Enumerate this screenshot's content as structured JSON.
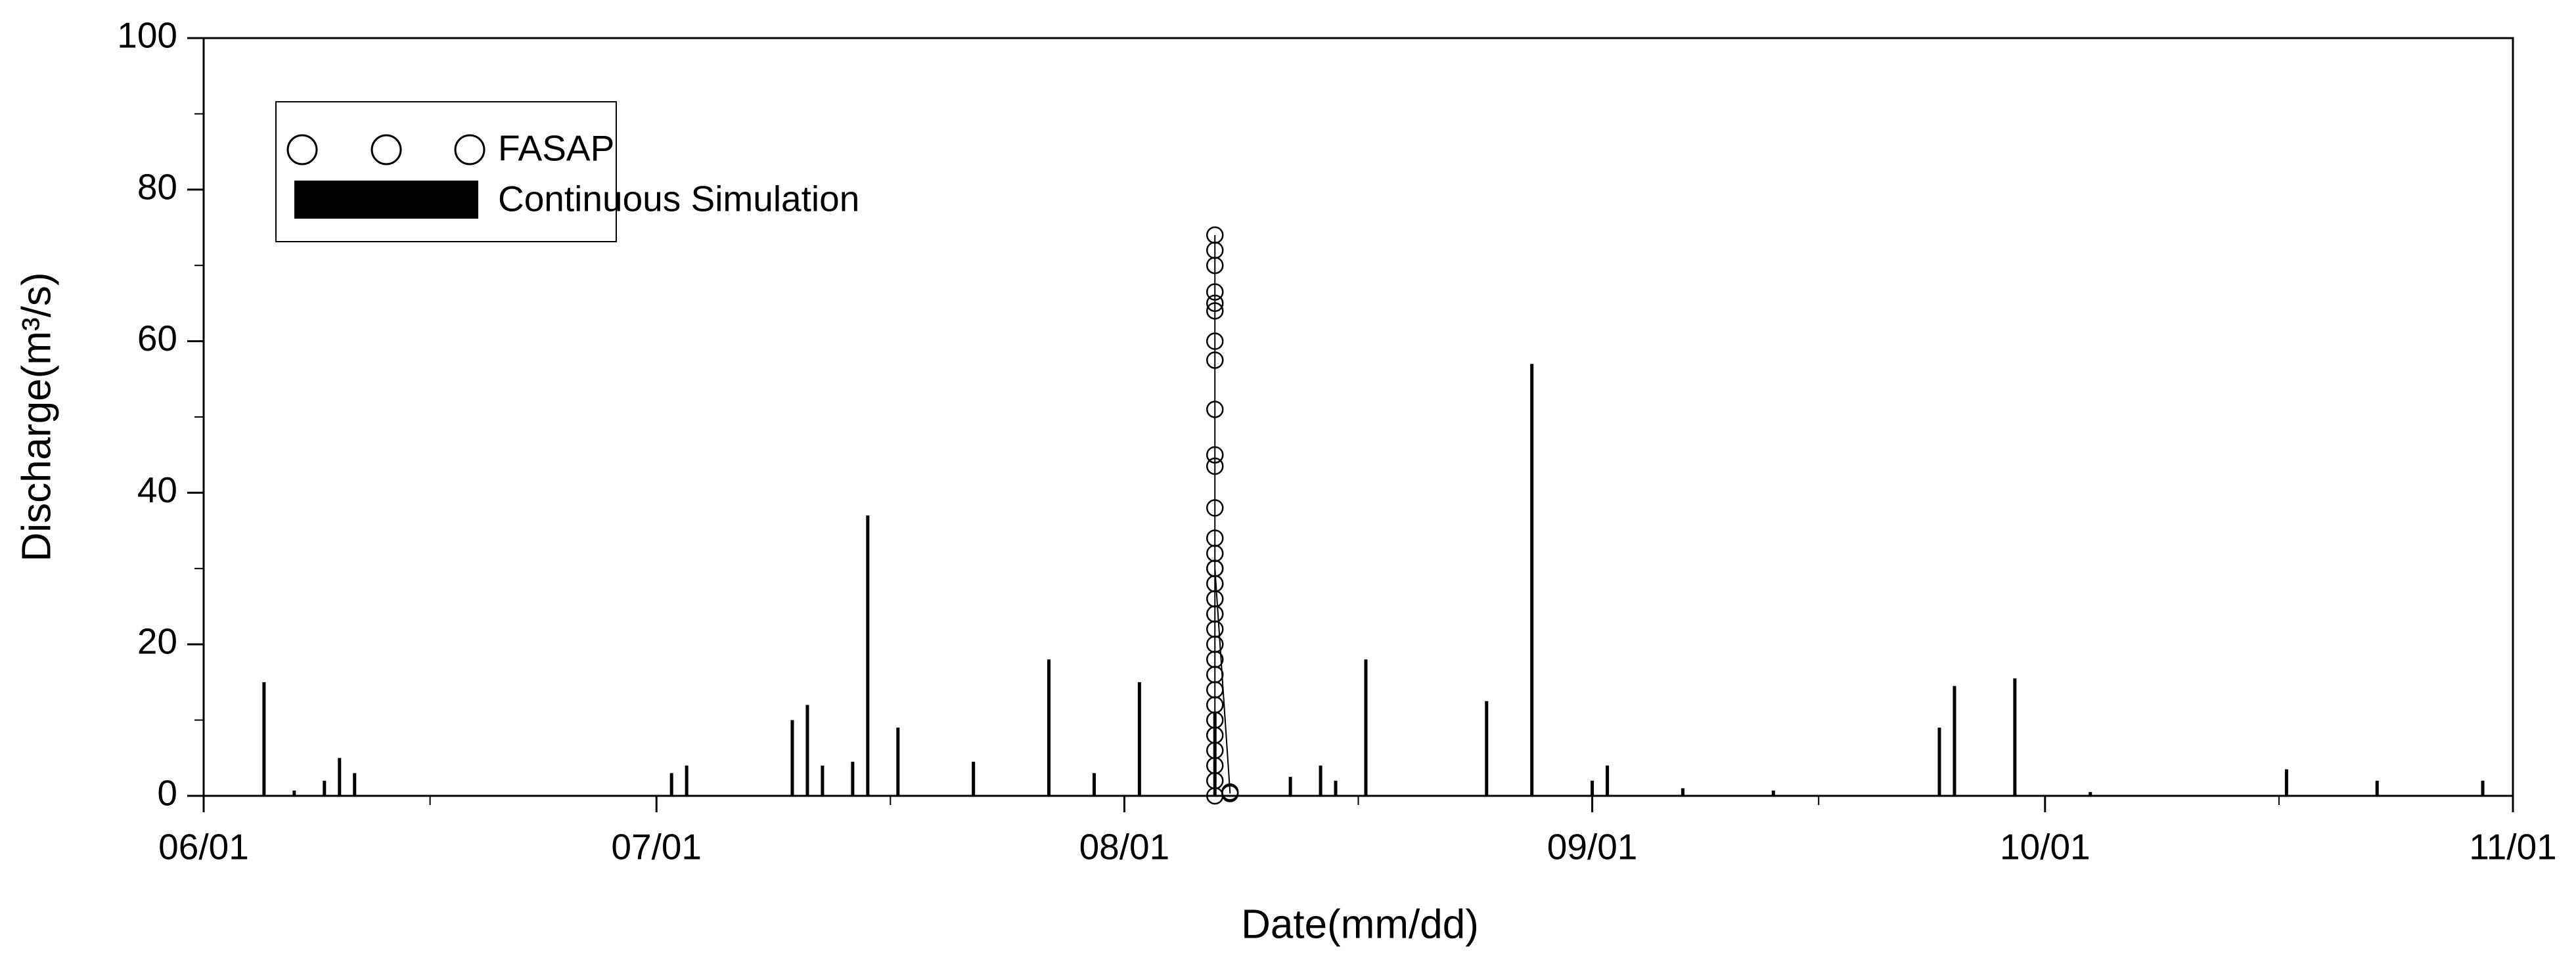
{
  "chart_data": {
    "type": "bar",
    "xlabel": "Date(mm/dd)",
    "ylabel": "Discharge(m³/s)",
    "xlim": [
      "06/01",
      "11/01"
    ],
    "xticks": [
      "06/01",
      "07/01",
      "08/01",
      "09/01",
      "10/01",
      "11/01"
    ],
    "ylim": [
      0,
      100
    ],
    "yticks": [
      0,
      20,
      40,
      60,
      80,
      100
    ],
    "legend": "upper left",
    "series": [
      {
        "name": "FASAP",
        "type": "scatter",
        "color": "#000000",
        "x": [
          "08/07",
          "08/07",
          "08/07",
          "08/07",
          "08/07",
          "08/07",
          "08/07",
          "08/07",
          "08/07",
          "08/07",
          "08/07",
          "08/07",
          "08/07",
          "08/07",
          "08/07",
          "08/07",
          "08/07",
          "08/07",
          "08/07",
          "08/07",
          "08/07",
          "08/07",
          "08/07",
          "08/07",
          "08/07",
          "08/07",
          "08/07",
          "08/07",
          "08/07",
          "08/07",
          "08/07",
          "08/08",
          "08/08"
        ],
        "values": [
          0,
          2,
          4,
          6,
          8,
          10,
          12,
          14,
          16,
          18,
          20,
          22,
          24,
          26,
          28,
          30,
          32,
          34,
          38,
          43.5,
          45,
          51,
          57.5,
          64,
          65,
          66.5,
          70,
          72,
          74,
          60,
          30,
          0.5,
          0.3
        ]
      },
      {
        "name": "Continuous Simulation",
        "type": "bar",
        "color": "#000000",
        "x": [
          "06/05",
          "06/07",
          "06/09",
          "06/10",
          "06/11",
          "07/02",
          "07/03",
          "07/10",
          "07/11",
          "07/12",
          "07/14",
          "07/15",
          "07/17",
          "07/22",
          "07/27",
          "07/30",
          "08/02",
          "08/07",
          "08/12",
          "08/14",
          "08/15",
          "08/17",
          "08/25",
          "08/28",
          "09/01",
          "09/02",
          "09/07",
          "09/13",
          "09/24",
          "09/25",
          "09/29",
          "10/04",
          "10/17",
          "10/23",
          "10/30"
        ],
        "values": [
          15,
          0.7,
          2,
          5,
          3,
          3,
          4,
          10,
          12,
          4,
          4.5,
          37,
          9,
          4.5,
          18,
          3,
          15,
          11,
          2.5,
          4,
          2,
          18,
          12.5,
          57,
          2,
          4,
          1,
          0.7,
          9,
          14.5,
          15.5,
          0.5,
          3.5,
          2,
          2
        ]
      }
    ]
  }
}
